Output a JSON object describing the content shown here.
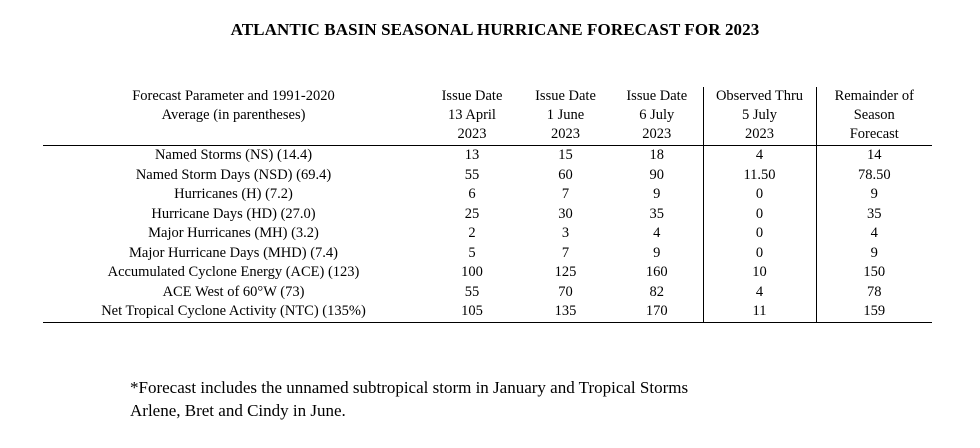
{
  "title": "ATLANTIC BASIN SEASONAL HURRICANE FORECAST FOR 2023",
  "table": {
    "headers": [
      [
        "Forecast Parameter and 1991-2020",
        "Average (in parentheses)"
      ],
      [
        "Issue Date",
        "13 April",
        "2023"
      ],
      [
        "Issue Date",
        "1 June",
        "2023"
      ],
      [
        "Issue Date",
        "6 July",
        "2023"
      ],
      [
        "Observed Thru",
        "5 July",
        "2023"
      ],
      [
        "Remainder of",
        "Season",
        "Forecast"
      ]
    ],
    "rows": [
      [
        "Named Storms (NS) (14.4)",
        "13",
        "15",
        "18",
        "4",
        "14"
      ],
      [
        "Named Storm Days (NSD) (69.4)",
        "55",
        "60",
        "90",
        "11.50",
        "78.50"
      ],
      [
        "Hurricanes (H) (7.2)",
        "6",
        "7",
        "9",
        "0",
        "9"
      ],
      [
        "Hurricane Days (HD) (27.0)",
        "25",
        "30",
        "35",
        "0",
        "35"
      ],
      [
        "Major Hurricanes (MH) (3.2)",
        "2",
        "3",
        "4",
        "0",
        "4"
      ],
      [
        "Major Hurricane Days (MHD) (7.4)",
        "5",
        "7",
        "9",
        "0",
        "9"
      ],
      [
        "Accumulated Cyclone Energy (ACE) (123)",
        "100",
        "125",
        "160",
        "10",
        "150"
      ],
      [
        "ACE West of 60°W (73)",
        "55",
        "70",
        "82",
        "4",
        "78"
      ],
      [
        "Net Tropical Cyclone Activity (NTC) (135%)",
        "105",
        "135",
        "170",
        "11",
        "159"
      ]
    ]
  },
  "footnote": {
    "line1": "*Forecast includes the unnamed subtropical storm in January and Tropical Storms",
    "line2": "Arlene, Bret and Cindy in June."
  }
}
